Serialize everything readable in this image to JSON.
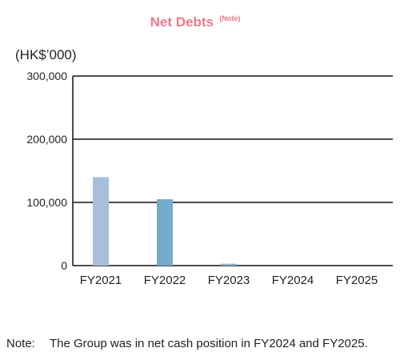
{
  "colors": {
    "title": "#e87b8c",
    "bar_fy2021": "#a7bfd9",
    "bar_fy2022": "#76aacf",
    "bar_fy2023": "#8fb4d4",
    "gridline": "#111111",
    "text": "#222222"
  },
  "chart_data": {
    "type": "bar",
    "title": "Net Debts",
    "title_superscript": "(Note)",
    "unit_label": "(HK$’000)",
    "xlabel": "",
    "ylabel": "",
    "categories": [
      "FY2021",
      "FY2022",
      "FY2023",
      "FY2024",
      "FY2025"
    ],
    "values": [
      140000,
      105000,
      3000,
      0,
      0
    ],
    "ylim": [
      0,
      300000
    ],
    "yticks": [
      0,
      100000,
      200000,
      300000
    ],
    "ytick_labels": [
      "0",
      "100,000",
      "200,000",
      "300,000"
    ],
    "grid": true,
    "legend": "none"
  },
  "footnote": {
    "label": "Note:",
    "text": "The Group was in net cash position in FY2024 and FY2025."
  }
}
